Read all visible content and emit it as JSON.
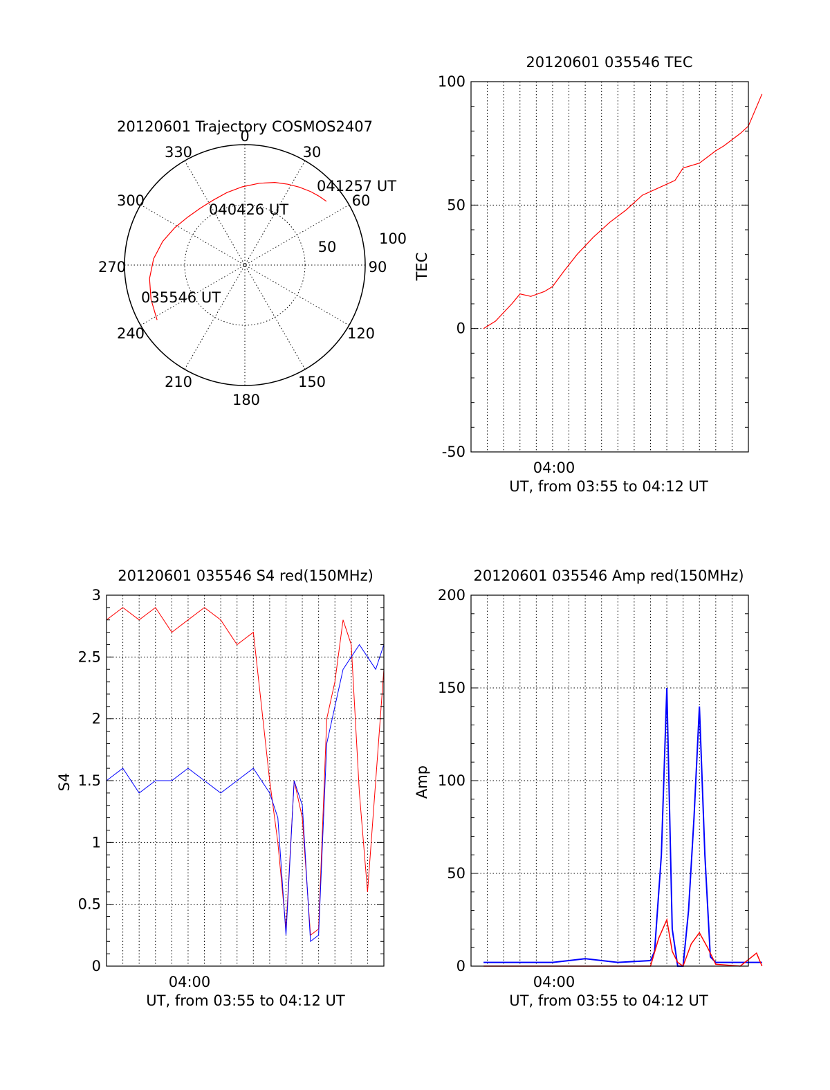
{
  "chart_data": [
    {
      "type": "polar",
      "title": "20120601 Trajectory COSMOS2407",
      "angle_labels": [
        "0",
        "30",
        "60",
        "90",
        "120",
        "150",
        "180",
        "210",
        "240",
        "270",
        "300",
        "330"
      ],
      "radius_labels": [
        "50",
        "100"
      ],
      "time_labels": [
        "041257 UT",
        "040426 UT",
        "035546 UT"
      ],
      "series": [
        {
          "color": "#ff0000",
          "points": [
            {
              "az": 238,
              "r": 86
            },
            {
              "az": 250,
              "r": 83
            },
            {
              "az": 262,
              "r": 80
            },
            {
              "az": 274,
              "r": 76
            },
            {
              "az": 286,
              "r": 71
            },
            {
              "az": 298,
              "r": 66
            },
            {
              "az": 310,
              "r": 62
            },
            {
              "az": 322,
              "r": 60
            },
            {
              "az": 334,
              "r": 60
            },
            {
              "az": 346,
              "r": 62
            },
            {
              "az": 358,
              "r": 65
            },
            {
              "az": 10,
              "r": 69
            },
            {
              "az": 20,
              "r": 73
            },
            {
              "az": 28,
              "r": 76
            },
            {
              "az": 35,
              "r": 79
            },
            {
              "az": 42,
              "r": 82
            },
            {
              "az": 47,
              "r": 84
            },
            {
              "az": 52,
              "r": 86
            }
          ]
        }
      ]
    },
    {
      "type": "line",
      "title": "20120601 035546 TEC",
      "xlabel": "UT, from 03:55 to 04:12 UT",
      "ylabel": "TEC",
      "xlim": [
        "03:55",
        "04:12"
      ],
      "xticklabels": [
        "04:00"
      ],
      "ylim": [
        -50,
        100
      ],
      "yticks": [
        -50,
        0,
        50,
        100
      ],
      "grid": true,
      "series": [
        {
          "color": "#ff0000",
          "x": [
            "03:55:46",
            "03:56:30",
            "03:57:30",
            "03:58:00",
            "03:58:40",
            "03:59:30",
            "04:00:00",
            "04:00:40",
            "04:01:30",
            "04:02:30",
            "04:03:30",
            "04:04:30",
            "04:05:30",
            "04:06:30",
            "04:07:30",
            "04:08:00",
            "04:09:00",
            "04:10:00",
            "04:10:30",
            "04:11:30",
            "04:12:00",
            "04:12:50"
          ],
          "y": [
            0,
            3,
            10,
            14,
            13,
            15,
            17,
            23,
            30,
            37,
            43,
            48,
            54,
            57,
            60,
            65,
            67,
            72,
            74,
            79,
            82,
            95
          ]
        }
      ]
    },
    {
      "type": "line",
      "title": "20120601 035546 S4 red(150MHz)",
      "xlabel": "UT, from 03:55 to 04:12 UT",
      "ylabel": "S4",
      "xlim": [
        "03:55",
        "04:12"
      ],
      "xticklabels": [
        "04:00"
      ],
      "ylim": [
        0,
        3
      ],
      "yticks": [
        "0",
        "0.5",
        "1",
        "1.5",
        "2",
        "2.5",
        "3"
      ],
      "grid": true,
      "series": [
        {
          "color": "#ff0000",
          "x": [
            "03:55:00",
            "03:56:00",
            "03:57:00",
            "03:58:00",
            "03:59:00",
            "04:00:00",
            "04:01:00",
            "04:02:00",
            "04:03:00",
            "04:04:00",
            "04:05:00",
            "04:05:30",
            "04:06:00",
            "04:06:30",
            "04:07:00",
            "04:07:30",
            "04:08:00",
            "04:08:30",
            "04:09:00",
            "04:09:30",
            "04:10:00",
            "04:10:30",
            "04:11:00",
            "04:11:30",
            "04:12:00"
          ],
          "y": [
            2.8,
            2.9,
            2.8,
            2.9,
            2.7,
            2.8,
            2.9,
            2.8,
            2.6,
            2.7,
            1.5,
            1.0,
            0.3,
            1.5,
            1.2,
            0.25,
            0.3,
            2.0,
            2.3,
            2.8,
            2.6,
            1.4,
            0.6,
            1.5,
            2.4
          ]
        },
        {
          "color": "#0000ff",
          "x": [
            "03:55:00",
            "03:56:00",
            "03:57:00",
            "03:58:00",
            "03:59:00",
            "04:00:00",
            "04:01:00",
            "04:02:00",
            "04:03:00",
            "04:04:00",
            "04:05:00",
            "04:05:30",
            "04:06:00",
            "04:06:30",
            "04:07:00",
            "04:07:30",
            "04:08:00",
            "04:08:30",
            "04:09:00",
            "04:09:30",
            "04:10:00",
            "04:10:30",
            "04:11:00",
            "04:11:30",
            "04:12:00"
          ],
          "y": [
            1.5,
            1.6,
            1.4,
            1.5,
            1.5,
            1.6,
            1.5,
            1.4,
            1.5,
            1.6,
            1.4,
            1.2,
            0.25,
            1.5,
            1.3,
            0.2,
            0.25,
            1.8,
            2.1,
            2.4,
            2.5,
            2.6,
            2.5,
            2.4,
            2.6
          ]
        }
      ]
    },
    {
      "type": "line",
      "title": "20120601 035546 Amp red(150MHz)",
      "xlabel": "UT, from 03:55 to 04:12 UT",
      "ylabel": "Amp",
      "xlim": [
        "03:55",
        "04:12"
      ],
      "xticklabels": [
        "04:00"
      ],
      "ylim": [
        0,
        200
      ],
      "yticks": [
        0,
        50,
        100,
        150,
        200
      ],
      "grid": true,
      "series": [
        {
          "color": "#0000ff",
          "x": [
            "03:55:46",
            "03:58:00",
            "04:00:00",
            "04:01:00",
            "04:02:00",
            "04:04:00",
            "04:06:00",
            "04:06:15",
            "04:06:40",
            "04:07:00",
            "04:07:20",
            "04:07:40",
            "04:08:00",
            "04:08:20",
            "04:08:40",
            "04:09:00",
            "04:09:20",
            "04:09:40",
            "04:10:00",
            "04:12:00",
            "04:12:50"
          ],
          "y": [
            2,
            2,
            2,
            3,
            4,
            2,
            3,
            8,
            60,
            150,
            20,
            0,
            0,
            30,
            80,
            140,
            60,
            5,
            2,
            2,
            2
          ]
        },
        {
          "color": "#ff0000",
          "x": [
            "03:55:46",
            "04:00:00",
            "04:06:00",
            "04:06:30",
            "04:07:00",
            "04:07:20",
            "04:07:40",
            "04:08:00",
            "04:08:30",
            "04:09:00",
            "04:09:30",
            "04:10:00",
            "04:11:30",
            "04:12:30",
            "04:12:50"
          ],
          "y": [
            0,
            0,
            0,
            15,
            25,
            8,
            2,
            0,
            12,
            18,
            10,
            1,
            0,
            7,
            0
          ]
        }
      ]
    }
  ]
}
